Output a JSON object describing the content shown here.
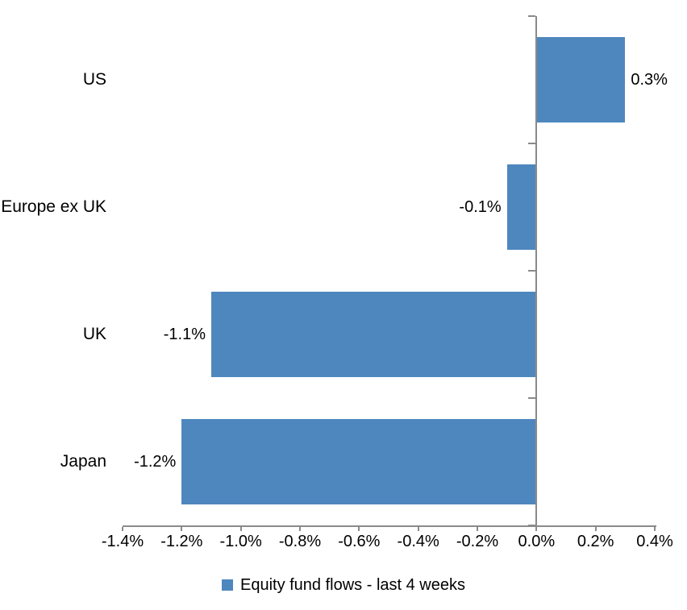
{
  "chart_data": {
    "type": "bar",
    "orientation": "horizontal",
    "title": "",
    "xlabel": "",
    "ylabel": "",
    "categories": [
      "US",
      "Europe ex UK",
      "UK",
      "Japan"
    ],
    "values": [
      0.3,
      -0.1,
      -1.1,
      -1.2
    ],
    "value_labels": [
      "0.3%",
      "-0.1%",
      "-1.1%",
      "-1.2%"
    ],
    "series_name": "Equity fund flows - last 4 weeks",
    "xlim": [
      -1.4,
      0.4
    ],
    "x_tick_step": 0.2,
    "x_tick_labels": [
      "-1.4%",
      "-1.2%",
      "-1.0%",
      "-0.8%",
      "-0.6%",
      "-0.4%",
      "-0.2%",
      "0.0%",
      "0.2%",
      "0.4%"
    ],
    "grid": false,
    "legend_position": "bottom",
    "colors": {
      "bar": "#4E87BE",
      "axis": "#8A8A8A",
      "text": "#000000",
      "background": "#FFFFFF"
    }
  }
}
